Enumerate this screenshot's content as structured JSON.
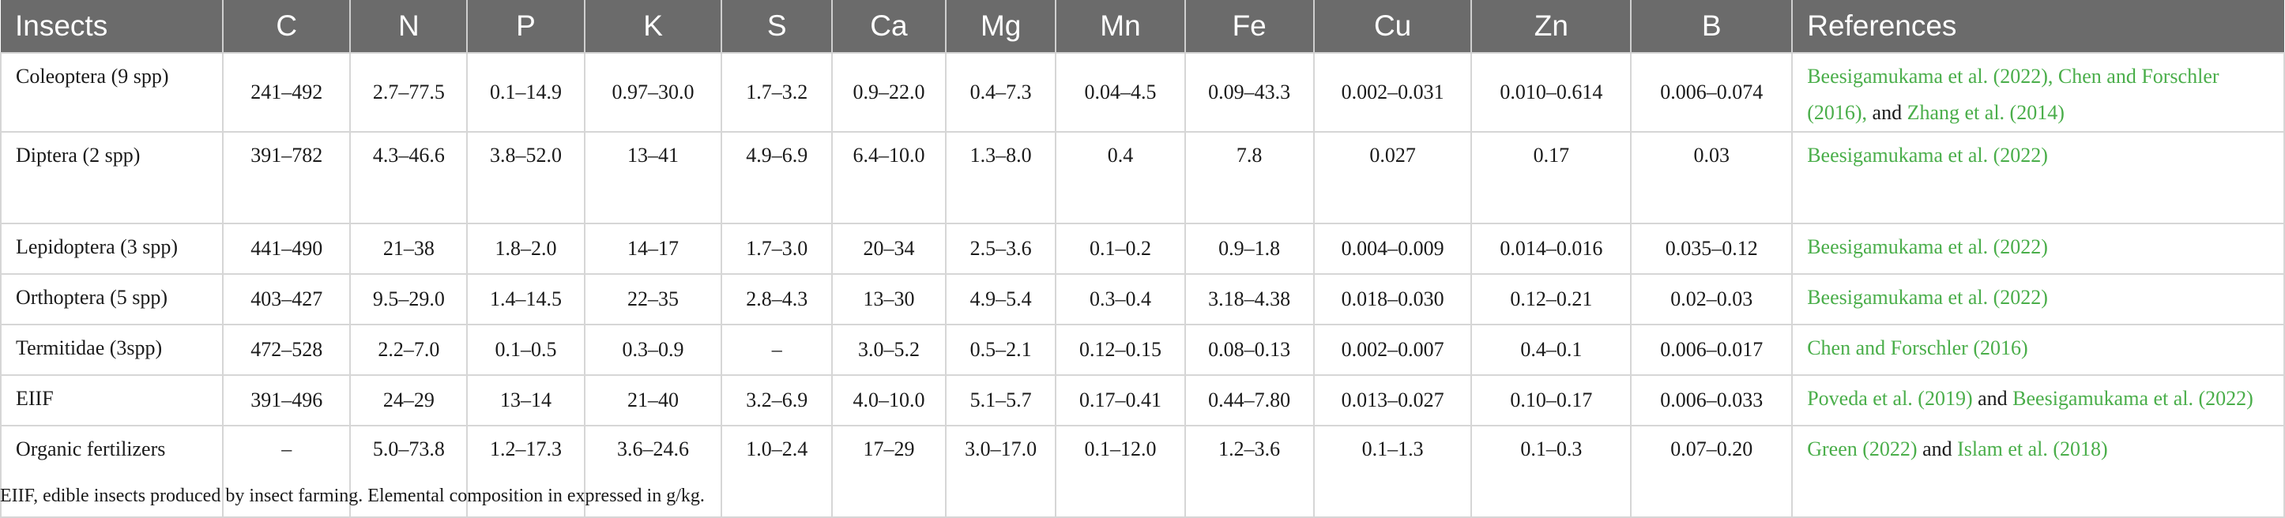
{
  "table": {
    "headers": [
      "Insects",
      "C",
      "N",
      "P",
      "K",
      "S",
      "Ca",
      "Mg",
      "Mn",
      "Fe",
      "Cu",
      "Zn",
      "B",
      "References"
    ],
    "rows": [
      {
        "cells": [
          "Coleoptera (9 spp)",
          "241–492",
          "2.7–77.5",
          "0.1–14.9",
          "0.97–30.0",
          "1.7–3.2",
          "0.9–22.0",
          "0.4–7.3",
          "0.04–4.5",
          "0.09–43.3",
          "0.002–0.031",
          "0.010–0.614",
          "0.006–0.074"
        ],
        "refs": [
          {
            "t": "Beesigamukama et al. (2022), Chen and Forschler (2016),",
            "c": true
          },
          {
            "t": " and ",
            "c": false
          },
          {
            "t": "Zhang et al. (2014)",
            "c": true
          }
        ]
      },
      {
        "cells": [
          "Diptera (2 spp)",
          "391–782",
          "4.3–46.6",
          "3.8–52.0",
          "13–41",
          "4.9–6.9",
          "6.4–10.0",
          "1.3–8.0",
          "0.4",
          "7.8",
          "0.027",
          "0.17",
          "0.03"
        ],
        "refs": [
          {
            "t": "Beesigamukama et al. (2022)",
            "c": true
          }
        ]
      },
      {
        "cells": [
          "Lepidoptera (3 spp)",
          "441–490",
          "21–38",
          "1.8–2.0",
          "14–17",
          "1.7–3.0",
          "20–34",
          "2.5–3.6",
          "0.1–0.2",
          "0.9–1.8",
          "0.004–0.009",
          "0.014–0.016",
          "0.035–0.12"
        ],
        "refs": [
          {
            "t": "Beesigamukama et al. (2022)",
            "c": true
          }
        ]
      },
      {
        "cells": [
          "Orthoptera (5 spp)",
          "403–427",
          "9.5–29.0",
          "1.4–14.5",
          "22–35",
          "2.8–4.3",
          "13–30",
          "4.9–5.4",
          "0.3–0.4",
          "3.18–4.38",
          "0.018–0.030",
          "0.12–0.21",
          "0.02–0.03"
        ],
        "refs": [
          {
            "t": "Beesigamukama et al. (2022)",
            "c": true
          }
        ]
      },
      {
        "cells": [
          "Termitidae (3spp)",
          "472–528",
          "2.2–7.0",
          "0.1–0.5",
          "0.3–0.9",
          "–",
          "3.0–5.2",
          "0.5–2.1",
          "0.12–0.15",
          "0.08–0.13",
          "0.002–0.007",
          "0.4–0.1",
          "0.006–0.017"
        ],
        "refs": [
          {
            "t": "Chen and Forschler (2016)",
            "c": true
          }
        ]
      },
      {
        "cells": [
          "EIIF",
          "391–496",
          "24–29",
          "13–14",
          "21–40",
          "3.2–6.9",
          "4.0–10.0",
          "5.1–5.7",
          "0.17–0.41",
          "0.44–7.80",
          "0.013–0.027",
          "0.10–0.17",
          "0.006–0.033"
        ],
        "refs": [
          {
            "t": "Poveda et al. (2019)",
            "c": true
          },
          {
            "t": " and ",
            "c": false
          },
          {
            "t": "Beesigamukama et al. (2022)",
            "c": true
          }
        ]
      },
      {
        "cells": [
          "Organic fertilizers",
          "–",
          "5.0–73.8",
          "1.2–17.3",
          "3.6–24.6",
          "1.0–2.4",
          "17–29",
          "3.0–17.0",
          "0.1–12.0",
          "1.2–3.6",
          "0.1–1.3",
          "0.1–0.3",
          "0.07–0.20"
        ],
        "refs": [
          {
            "t": "Green (2022)",
            "c": true
          },
          {
            "t": " and ",
            "c": false
          },
          {
            "t": "Islam et al. (2018)",
            "c": true
          }
        ]
      }
    ]
  },
  "footnote": "EIIF, edible insects produced by insect farming. Elemental composition in expressed in g/kg."
}
